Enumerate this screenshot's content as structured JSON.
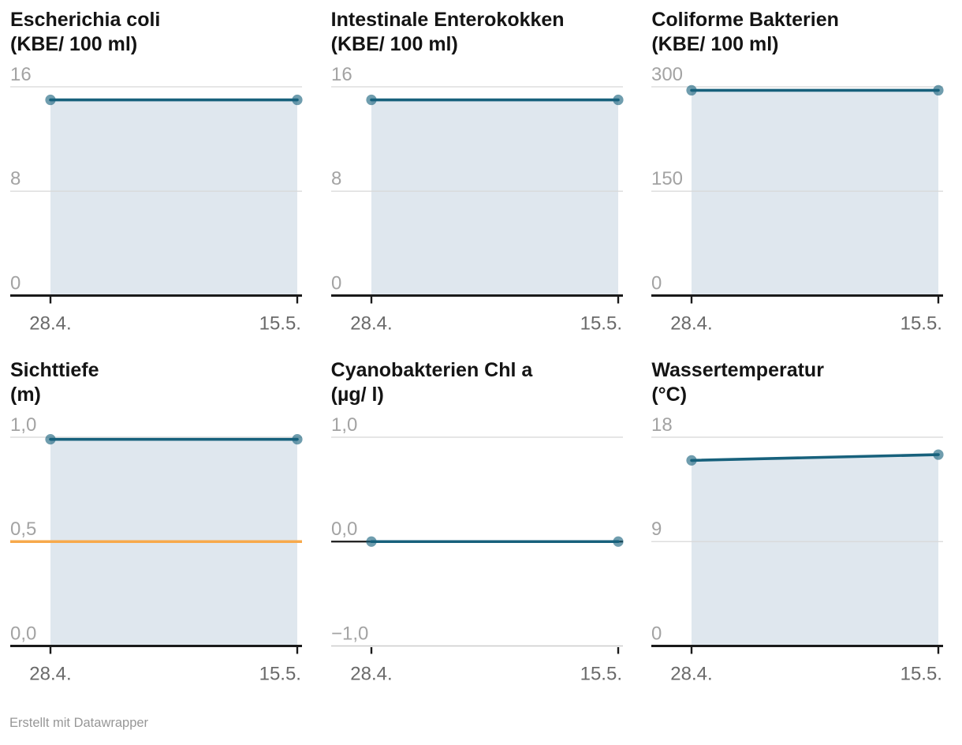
{
  "attribution": "Erstellt mit Datawrapper",
  "x_axis": {
    "labels": [
      "28.4.",
      "15.5."
    ]
  },
  "palette": {
    "line": "#17617c",
    "marker_opacity": 0.62,
    "area": "#dfe7ee",
    "grid": "#d8d8d8",
    "axis": "#1a1a1a",
    "axis_muted": "#cccccc",
    "threshold": "#f7a94b",
    "y_label": "#a3a3a3",
    "x_label": "#6a6a6a",
    "title": "#141414",
    "background": "#ffffff"
  },
  "chart_data": [
    {
      "type": "area",
      "title": "Escherichia coli",
      "unit": "(KBE/ 100 ml)",
      "x": [
        "28.4.",
        "15.5."
      ],
      "values": [
        15,
        15
      ],
      "ylim": [
        0,
        16
      ],
      "yticks": [
        {
          "value": 0,
          "label": "0"
        },
        {
          "value": 8,
          "label": "8"
        },
        {
          "value": 16,
          "label": "16"
        }
      ]
    },
    {
      "type": "area",
      "title": "Intestinale Enterokokken",
      "unit": "(KBE/ 100 ml)",
      "x": [
        "28.4.",
        "15.5."
      ],
      "values": [
        15,
        15
      ],
      "ylim": [
        0,
        16
      ],
      "yticks": [
        {
          "value": 0,
          "label": "0"
        },
        {
          "value": 8,
          "label": "8"
        },
        {
          "value": 16,
          "label": "16"
        }
      ]
    },
    {
      "type": "area",
      "title": "Coliforme Bakterien",
      "unit": "(KBE/ 100 ml)",
      "x": [
        "28.4.",
        "15.5."
      ],
      "values": [
        295,
        295
      ],
      "ylim": [
        0,
        300
      ],
      "yticks": [
        {
          "value": 0,
          "label": "0"
        },
        {
          "value": 150,
          "label": "150"
        },
        {
          "value": 300,
          "label": "300"
        }
      ]
    },
    {
      "type": "area",
      "title": "Sichttiefe",
      "unit": "(m)",
      "x": [
        "28.4.",
        "15.5."
      ],
      "values": [
        0.99,
        0.99
      ],
      "ylim": [
        0,
        1
      ],
      "threshold": 0.5,
      "yticks": [
        {
          "value": 0,
          "label": "0,0"
        },
        {
          "value": 0.5,
          "label": "0,5"
        },
        {
          "value": 1,
          "label": "1,0"
        }
      ]
    },
    {
      "type": "line",
      "title": "Cyanobakterien Chl a",
      "unit": "(µg/ l)",
      "x": [
        "28.4.",
        "15.5."
      ],
      "values": [
        0,
        0
      ],
      "ylim": [
        -1,
        1
      ],
      "yticks": [
        {
          "value": -1,
          "label": "−1,0"
        },
        {
          "value": 0,
          "label": "0,0"
        },
        {
          "value": 1,
          "label": "1,0"
        }
      ]
    },
    {
      "type": "area",
      "title": "Wassertemperatur",
      "unit": "(°C)",
      "x": [
        "28.4.",
        "15.5."
      ],
      "values": [
        16,
        16.5
      ],
      "ylim": [
        0,
        18
      ],
      "yticks": [
        {
          "value": 0,
          "label": "0"
        },
        {
          "value": 9,
          "label": "9"
        },
        {
          "value": 18,
          "label": "18"
        }
      ]
    }
  ]
}
